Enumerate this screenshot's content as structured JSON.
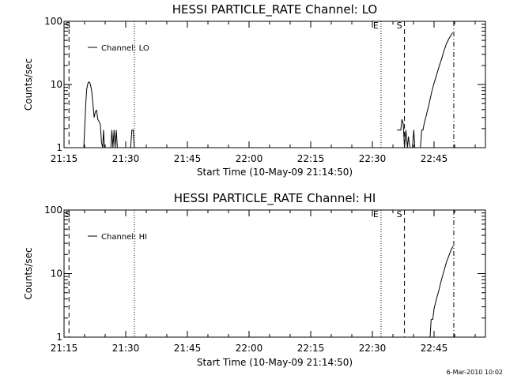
{
  "footer": "6-Mar-2010 10:02",
  "chart_data": [
    {
      "type": "line",
      "title": "HESSI PARTICLE_RATE Channel: LO",
      "xlabel": "Start Time (10-May-09 21:14:50)",
      "ylabel": "Counts/sec",
      "xlim": [
        21.25,
        22.9583
      ],
      "ylim": [
        1,
        100
      ],
      "yscale": "log",
      "xticks": [
        21.25,
        21.5,
        21.75,
        22.0,
        22.25,
        22.5,
        22.75
      ],
      "xtick_labels": [
        "21:15",
        "21:30",
        "21:45",
        "22:00",
        "22:15",
        "22:30",
        "22:45"
      ],
      "yticks": [
        1,
        10,
        100
      ],
      "ytick_labels": [
        "1",
        "10",
        "100"
      ],
      "legend": {
        "label": "Channel: LO",
        "position": "top-left"
      },
      "markers": [
        {
          "x": 21.27,
          "label": "S",
          "style": "dashed"
        },
        {
          "x": 21.535,
          "label": "",
          "style": "dotted"
        },
        {
          "x": 22.535,
          "label": "E",
          "style": "dotted"
        },
        {
          "x": 22.63,
          "label": "S",
          "style": "dashed"
        },
        {
          "x": 22.83,
          "label": "",
          "style": "dashdot"
        }
      ],
      "series": [
        {
          "segments": [
            [
              [
                21.33,
                1
              ],
              [
                21.338,
                5
              ],
              [
                21.342,
                8.5
              ],
              [
                21.347,
                10.5
              ],
              [
                21.352,
                11
              ],
              [
                21.357,
                10
              ],
              [
                21.362,
                8
              ],
              [
                21.367,
                5
              ],
              [
                21.372,
                3
              ],
              [
                21.377,
                3.7
              ],
              [
                21.382,
                3.9
              ],
              [
                21.387,
                2.8
              ],
              [
                21.392,
                2.6
              ],
              [
                21.397,
                2.3
              ],
              [
                21.402,
                1.2
              ],
              [
                21.407,
                1
              ],
              [
                21.41,
                1.9
              ],
              [
                21.414,
                1
              ],
              [
                21.44,
                1
              ],
              [
                21.444,
                1.9
              ],
              [
                21.448,
                1
              ],
              [
                21.453,
                1.9
              ],
              [
                21.457,
                1
              ],
              [
                21.462,
                1.9
              ],
              [
                21.466,
                1
              ],
              [
                21.52,
                1
              ],
              [
                21.525,
                1.9
              ],
              [
                21.53,
                1.9
              ],
              [
                21.535,
                1
              ]
            ],
            [
              [
                22.6,
                1.9
              ],
              [
                22.615,
                1.9
              ],
              [
                22.62,
                2.8
              ],
              [
                22.625,
                2.4
              ],
              [
                22.63,
                1
              ],
              [
                22.636,
                1.9
              ],
              [
                22.642,
                1
              ],
              [
                22.646,
                1.5
              ],
              [
                22.652,
                1
              ],
              [
                22.662,
                1
              ],
              [
                22.668,
                1.9
              ],
              [
                22.672,
                1
              ],
              [
                22.695,
                1
              ],
              [
                22.7,
                1.9
              ],
              [
                22.705,
                1.9
              ],
              [
                22.71,
                2.4
              ],
              [
                22.72,
                3.4
              ],
              [
                22.73,
                5
              ],
              [
                22.74,
                7.5
              ],
              [
                22.75,
                10.5
              ],
              [
                22.76,
                14
              ],
              [
                22.77,
                19
              ],
              [
                22.78,
                25
              ],
              [
                22.79,
                34
              ],
              [
                22.8,
                44
              ],
              [
                22.81,
                53
              ],
              [
                22.82,
                61
              ],
              [
                22.825,
                66
              ]
            ]
          ]
        }
      ]
    },
    {
      "type": "line",
      "title": "HESSI PARTICLE_RATE Channel: HI",
      "xlabel": "Start Time (10-May-09 21:14:50)",
      "ylabel": "Counts/sec",
      "xlim": [
        21.25,
        22.9583
      ],
      "ylim": [
        1,
        100
      ],
      "yscale": "log",
      "xticks": [
        21.25,
        21.5,
        21.75,
        22.0,
        22.25,
        22.5,
        22.75
      ],
      "xtick_labels": [
        "21:15",
        "21:30",
        "21:45",
        "22:00",
        "22:15",
        "22:30",
        "22:45"
      ],
      "yticks": [
        1,
        10,
        100
      ],
      "ytick_labels": [
        "1",
        "10",
        "100"
      ],
      "legend": {
        "label": "Channel: HI",
        "position": "top-left"
      },
      "markers": [
        {
          "x": 21.27,
          "label": "S",
          "style": "dashed"
        },
        {
          "x": 21.535,
          "label": "",
          "style": "dotted"
        },
        {
          "x": 22.535,
          "label": "E",
          "style": "dotted"
        },
        {
          "x": 22.63,
          "label": "S",
          "style": "dashed"
        },
        {
          "x": 22.83,
          "label": "",
          "style": "dashdot"
        }
      ],
      "series": [
        {
          "segments": [
            [
              [
                22.734,
                1
              ],
              [
                22.738,
                1.9
              ],
              [
                22.745,
                1.9
              ],
              [
                22.75,
                2.8
              ],
              [
                22.76,
                4
              ],
              [
                22.77,
                5.5
              ],
              [
                22.78,
                8
              ],
              [
                22.79,
                11
              ],
              [
                22.8,
                15
              ],
              [
                22.81,
                19
              ],
              [
                22.82,
                24
              ],
              [
                22.828,
                27
              ]
            ]
          ]
        }
      ]
    }
  ]
}
